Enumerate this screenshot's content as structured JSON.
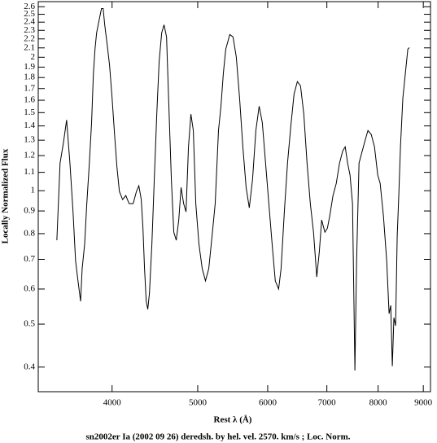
{
  "chart_data": {
    "type": "line",
    "caption": "sn2002er Ia (2002 09 26) deredsh. by hel. vel.  2570. km/s ;  Loc. Norm.",
    "x_label": "Rest λ (Å)",
    "y_label": "Locally Normalized Flux",
    "xscale": "log",
    "yscale": "log",
    "xlim": [
      3300,
      9170
    ],
    "ylim": [
      0.352,
      2.67
    ],
    "xticks": [
      4000,
      5000,
      6000,
      7000,
      8000,
      9000
    ],
    "yticks": [
      0.4,
      0.5,
      0.6,
      0.7,
      0.8,
      0.9,
      1,
      1.1,
      1.2,
      1.3,
      1.4,
      1.5,
      1.6,
      1.7,
      1.8,
      1.9,
      2,
      2.1,
      2.2,
      2.3,
      2.4,
      2.5,
      2.6
    ],
    "x": [
      3464,
      3493,
      3524,
      3553,
      3584,
      3613,
      3637,
      3660,
      3685,
      3700,
      3724,
      3745,
      3770,
      3792,
      3810,
      3826,
      3842,
      3866,
      3891,
      3908,
      3924,
      3950,
      3974,
      4000,
      4026,
      4051,
      4077,
      4111,
      4146,
      4181,
      4226,
      4262,
      4289,
      4316,
      4335,
      4353,
      4372,
      4390,
      4409,
      4437,
      4465,
      4494,
      4522,
      4552,
      4580,
      4610,
      4638,
      4668,
      4698,
      4728,
      4759,
      4788,
      4820,
      4850,
      4881,
      4912,
      4943,
      4975,
      5016,
      5059,
      5102,
      5146,
      5190,
      5233,
      5278,
      5312,
      5345,
      5379,
      5436,
      5482,
      5529,
      5576,
      5624,
      5672,
      5719,
      5768,
      5818,
      5868,
      5916,
      5967,
      6018,
      6070,
      6120,
      6173,
      6213,
      6266,
      6318,
      6372,
      6427,
      6482,
      6536,
      6592,
      6648,
      6705,
      6761,
      6818,
      6863,
      6906,
      6964,
      7010,
      7053,
      7113,
      7174,
      7235,
      7296,
      7343,
      7389,
      7436,
      7484,
      7531,
      7564,
      7612,
      7677,
      7743,
      7791,
      7858,
      7925,
      7993,
      8043,
      8112,
      8181,
      8232,
      8268,
      8302,
      8336,
      8373,
      8408,
      8443,
      8480,
      8533,
      8588,
      8644,
      8680
    ],
    "series": [
      {
        "color": "#000000",
        "values": [
          0.773,
          1.154,
          1.283,
          1.444,
          1.154,
          0.896,
          0.695,
          0.626,
          0.563,
          0.667,
          0.757,
          0.935,
          1.154,
          1.426,
          1.837,
          2.086,
          2.27,
          2.418,
          2.576,
          2.576,
          2.367,
          2.13,
          1.917,
          1.619,
          1.339,
          1.13,
          0.996,
          0.955,
          0.975,
          0.935,
          0.935,
          0.996,
          1.026,
          0.955,
          0.823,
          0.667,
          0.563,
          0.54,
          0.587,
          0.757,
          1.061,
          1.488,
          1.958,
          2.27,
          2.367,
          2.222,
          1.551,
          1.061,
          0.806,
          0.773,
          0.859,
          1.017,
          0.935,
          0.896,
          1.256,
          1.488,
          1.367,
          0.935,
          0.757,
          0.667,
          0.626,
          0.667,
          0.789,
          0.935,
          1.367,
          1.551,
          1.837,
          2.086,
          2.251,
          2.222,
          2.0,
          1.619,
          1.256,
          1.017,
          0.915,
          1.061,
          1.367,
          1.551,
          1.426,
          1.154,
          0.935,
          0.757,
          0.626,
          0.6,
          0.667,
          0.896,
          1.154,
          1.396,
          1.653,
          1.762,
          1.724,
          1.488,
          1.154,
          0.935,
          0.806,
          0.639,
          0.726,
          0.859,
          0.806,
          0.823,
          0.877,
          0.975,
          1.039,
          1.154,
          1.23,
          1.256,
          1.154,
          1.084,
          0.935,
          0.393,
          0.695,
          1.154,
          1.23,
          1.31,
          1.367,
          1.339,
          1.256,
          1.084,
          1.039,
          0.877,
          0.695,
          0.528,
          0.551,
          0.402,
          0.517,
          0.496,
          0.789,
          0.975,
          1.256,
          1.619,
          1.837,
          2.086,
          2.103
        ]
      }
    ]
  }
}
